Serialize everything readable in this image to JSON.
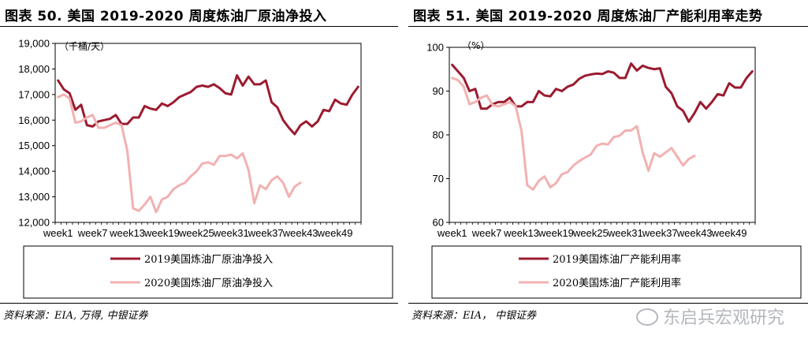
{
  "colors": {
    "series2019": "#9b1b30",
    "series2020": "#f2b1b1",
    "axis": "#000000",
    "frame": "#000000"
  },
  "left": {
    "title": "图表 50. 美国 2019-2020 周度炼油厂原油净投入",
    "source": "资料来源：EIA, 万得, 中银证券"
  },
  "right": {
    "title": "图表 51. 美国 2019-2020 周度炼油厂产能利用率走势",
    "source": "资料来源：EIA， 中银证券"
  },
  "watermark": {
    "text": "东启兵宏观研究",
    "logo": "wechat-icon"
  },
  "chart_data": [
    {
      "type": "line",
      "ylabel": "（千桶/天）",
      "ylim": [
        12000,
        19000
      ],
      "yticks": [
        12000,
        13000,
        14000,
        15000,
        16000,
        17000,
        18000,
        19000
      ],
      "ytick_labels": [
        "12,000",
        "13,000",
        "14,000",
        "15,000",
        "16,000",
        "17,000",
        "18,000",
        "19,000"
      ],
      "x_count": 53,
      "x_tick_labels": [
        "week1",
        "week7",
        "week13",
        "week19",
        "week25",
        "week31",
        "week37",
        "week43",
        "week49"
      ],
      "x_tick_positions": [
        1,
        7,
        13,
        19,
        25,
        31,
        37,
        43,
        49
      ],
      "legend": "bottom",
      "series": [
        {
          "name": "2019美国炼油厂原油净投入",
          "values": [
            17550,
            17200,
            17050,
            16400,
            16600,
            15800,
            15750,
            15950,
            16000,
            16050,
            16200,
            15850,
            15850,
            16100,
            16100,
            16550,
            16450,
            16400,
            16650,
            16550,
            16700,
            16900,
            17000,
            17100,
            17300,
            17350,
            17300,
            17400,
            17250,
            17050,
            17000,
            17750,
            17350,
            17700,
            17400,
            17400,
            17550,
            16700,
            16500,
            16000,
            15700,
            15450,
            15800,
            15950,
            15750,
            15950,
            16400,
            16350,
            16800,
            16650,
            16600,
            17000,
            17300
          ]
        },
        {
          "name": "2020美国炼油厂原油净投入",
          "values": [
            16900,
            17000,
            16850,
            15900,
            15950,
            16100,
            16200,
            15700,
            15700,
            15800,
            15900,
            15800,
            14800,
            12550,
            12450,
            12700,
            13000,
            12400,
            12900,
            13000,
            13300,
            13450,
            13550,
            13800,
            14000,
            14300,
            14350,
            14250,
            14600,
            14600,
            14650,
            14500,
            14700,
            14050,
            12750,
            13450,
            13300,
            13650,
            13800,
            13550,
            13000,
            13400,
            13550
          ]
        }
      ]
    },
    {
      "type": "line",
      "ylabel": "（%）",
      "ylim": [
        60,
        100
      ],
      "yticks": [
        60,
        70,
        80,
        90,
        100
      ],
      "ytick_labels": [
        "60",
        "70",
        "80",
        "90",
        "100"
      ],
      "x_count": 53,
      "x_tick_labels": [
        "week1",
        "week7",
        "week13",
        "week19",
        "week25",
        "week31",
        "week37",
        "week43",
        "week49"
      ],
      "x_tick_positions": [
        1,
        7,
        13,
        19,
        25,
        31,
        37,
        43,
        49
      ],
      "legend": "bottom",
      "series": [
        {
          "name": "2019美国炼油厂产能利用率",
          "values": [
            96.0,
            94.5,
            93.0,
            90.0,
            90.5,
            86.0,
            86.0,
            87.0,
            87.5,
            87.5,
            88.5,
            86.5,
            86.5,
            87.5,
            87.5,
            90.0,
            89.0,
            88.8,
            90.5,
            90.0,
            91.0,
            91.5,
            92.8,
            93.5,
            93.8,
            94.0,
            93.9,
            94.5,
            94.2,
            93.0,
            93.0,
            96.3,
            94.7,
            95.8,
            95.3,
            95.0,
            95.2,
            91.0,
            89.5,
            86.5,
            85.5,
            83.0,
            85.0,
            87.5,
            86.0,
            87.5,
            89.3,
            89.0,
            91.8,
            90.8,
            90.8,
            93.0,
            94.5
          ]
        },
        {
          "name": "2020美国炼油厂产能利用率",
          "values": [
            93.0,
            92.5,
            91.0,
            87.0,
            87.5,
            88.5,
            89.0,
            86.8,
            86.5,
            87.0,
            87.5,
            86.5,
            81.0,
            68.5,
            67.5,
            69.5,
            70.5,
            68.0,
            69.0,
            71.0,
            71.5,
            73.0,
            74.0,
            74.8,
            75.5,
            77.5,
            78.0,
            77.8,
            79.5,
            79.8,
            81.0,
            81.0,
            82.0,
            76.0,
            71.8,
            75.8,
            75.0,
            76.0,
            77.0,
            75.0,
            73.0,
            74.5,
            75.2
          ]
        }
      ]
    }
  ]
}
